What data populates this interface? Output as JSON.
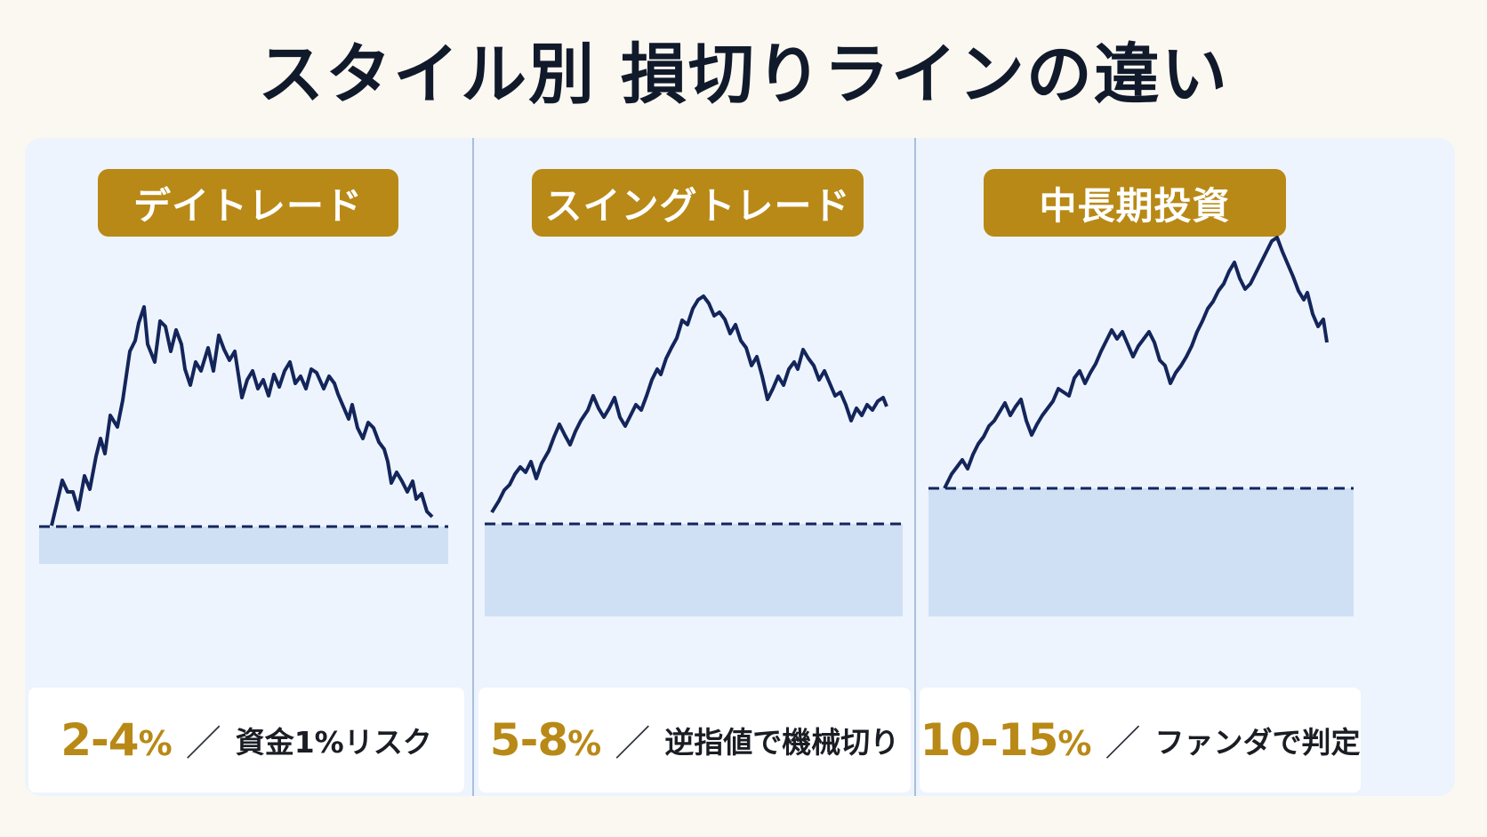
{
  "title": "スタイル別 損切りラインの違い",
  "colors": {
    "background": "#fbf8f1",
    "board": "#edf4fd",
    "badge": "#b88916",
    "line": "#13255a",
    "zone": "#cfe0f5",
    "accent_text": "#b88916"
  },
  "separator": "／",
  "panels": [
    {
      "label": "デイトレード",
      "range": "2-4",
      "percent_sign": "%",
      "description": "資金1%リスク"
    },
    {
      "label": "スイングトレード",
      "range": "5-8",
      "percent_sign": "%",
      "description": "逆指値で機械切り"
    },
    {
      "label": "中長期投資",
      "range": "10-15",
      "percent_sign": "%",
      "description": "ファンダで判定"
    }
  ]
}
